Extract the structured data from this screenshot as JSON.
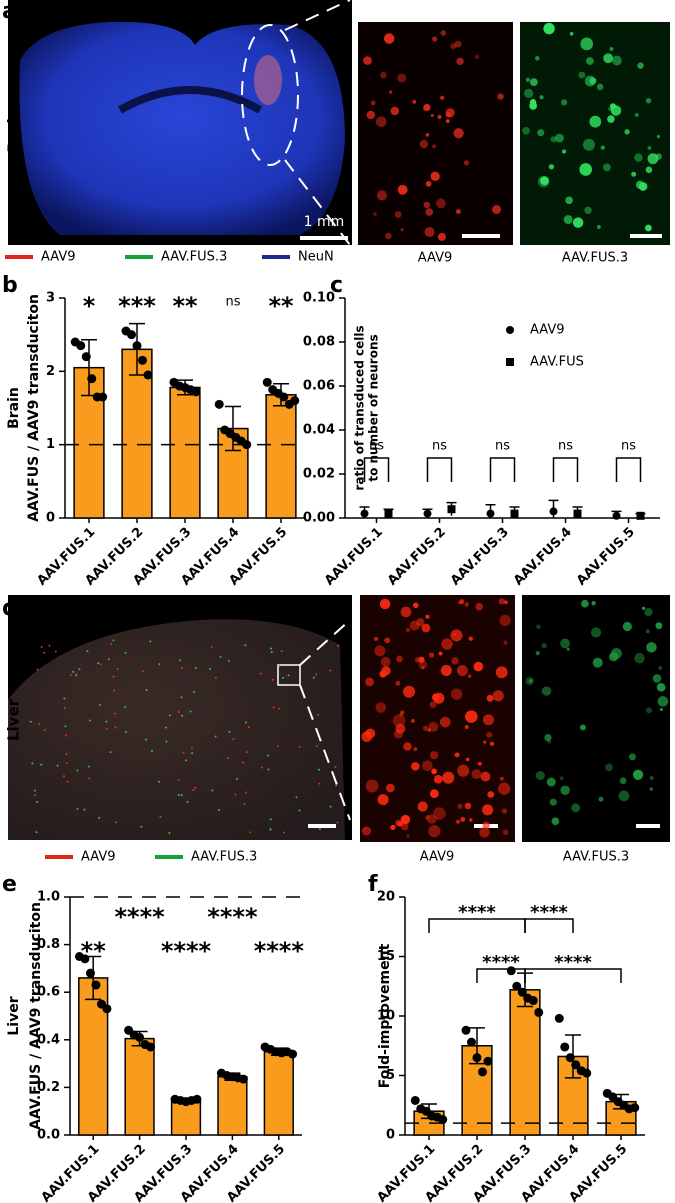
{
  "figure": {
    "panel_labels": [
      "a",
      "b",
      "c",
      "d",
      "e",
      "f"
    ],
    "brain_label": "Brain",
    "liver_label": "Liver",
    "scale_bar": "1 mm",
    "image_captions_top": [
      "AAV9",
      "AAV.FUS.3"
    ],
    "image_captions_bottom": [
      "AAV9",
      "AAV.FUS.3"
    ],
    "channel_legend_top": [
      {
        "name": "AAV9",
        "color": "#e0261a"
      },
      {
        "name": "AAV.FUS.3",
        "color": "#16a03c"
      },
      {
        "name": "NeuN",
        "color": "#1c2a8c"
      }
    ],
    "channel_legend_bottom": [
      {
        "name": "AAV9",
        "color": "#e0261a"
      },
      {
        "name": "AAV.FUS.3",
        "color": "#16a03c"
      }
    ]
  },
  "chart_data": [
    {
      "type": "bar",
      "ylabel": [
        "Brain",
        "AAV.FUS / AAV9 transduciton"
      ],
      "categories": [
        "AAV.FUS.1",
        "AAV.FUS.2",
        "AAV.FUS.3",
        "AAV.FUS.4",
        "AAV.FUS.5"
      ],
      "values": [
        2.05,
        2.3,
        1.78,
        1.22,
        1.68
      ],
      "errors": [
        0.38,
        0.35,
        0.1,
        0.3,
        0.15
      ],
      "points": [
        [
          2.4,
          2.35,
          2.2,
          1.9,
          1.65,
          1.65
        ],
        [
          2.55,
          2.5,
          2.35,
          2.15,
          1.95
        ],
        [
          1.85,
          1.8,
          1.78,
          1.75,
          1.72
        ],
        [
          1.55,
          1.2,
          1.15,
          1.1,
          1.05,
          1.0
        ],
        [
          1.85,
          1.75,
          1.7,
          1.65,
          1.55,
          1.6
        ]
      ],
      "significance": [
        "*",
        "***",
        "**",
        "ns",
        "**"
      ],
      "refline": 1,
      "color": "#f99b1c",
      "ylim": [
        0,
        3
      ],
      "yticks": [
        0,
        1,
        2,
        3
      ]
    },
    {
      "type": "dot",
      "ylabel": [
        "ratio of transduced cells",
        "to number of neurons"
      ],
      "categories": [
        "AAV.FUS.1",
        "AAV.FUS.2",
        "AAV.FUS.3",
        "AAV.FUS.4",
        "AAV.FUS.5"
      ],
      "series": [
        {
          "name": "AAV9",
          "marker": "circle",
          "color": "#000000",
          "values": [
            0.002,
            0.002,
            0.002,
            0.003,
            0.001
          ],
          "errors": [
            0.003,
            0.002,
            0.004,
            0.005,
            0.002
          ]
        },
        {
          "name": "AAV.FUS",
          "marker": "square",
          "color": "#000000",
          "values": [
            0.002,
            0.004,
            0.002,
            0.002,
            0.001
          ],
          "errors": [
            0.002,
            0.003,
            0.003,
            0.003,
            0.001
          ]
        }
      ],
      "significance": [
        "ns",
        "ns",
        "ns",
        "ns",
        "ns"
      ],
      "legend": "upper right",
      "ylim": [
        0,
        0.1
      ],
      "yticks": [
        {
          "value": 0,
          "label": "0.00"
        },
        {
          "value": 0.02,
          "label": "0.02"
        },
        {
          "value": 0.04,
          "label": "0.04"
        },
        {
          "value": 0.06,
          "label": "0.06"
        },
        {
          "value": 0.08,
          "label": "0.08"
        },
        {
          "value": 0.1,
          "label": "0.10"
        }
      ]
    },
    {
      "type": "bar",
      "ylabel": [
        "Liver",
        "AAV.FUS / AAV9 transduciton"
      ],
      "categories": [
        "AAV.FUS.1",
        "AAV.FUS.2",
        "AAV.FUS.3",
        "AAV.FUS.4",
        "AAV.FUS.5"
      ],
      "values": [
        0.66,
        0.405,
        0.145,
        0.245,
        0.35
      ],
      "errors": [
        0.09,
        0.03,
        0.01,
        0.015,
        0.015
      ],
      "points": [
        [
          0.75,
          0.74,
          0.68,
          0.63,
          0.55,
          0.53
        ],
        [
          0.44,
          0.42,
          0.41,
          0.38,
          0.37
        ],
        [
          0.15,
          0.145,
          0.14,
          0.145,
          0.15
        ],
        [
          0.26,
          0.25,
          0.245,
          0.24,
          0.235
        ],
        [
          0.37,
          0.36,
          0.35,
          0.345,
          0.35,
          0.34
        ]
      ],
      "significance": [
        "**",
        "****",
        "****",
        "****",
        "****"
      ],
      "refline": 1,
      "color": "#f99b1c",
      "ylim": [
        0,
        1
      ],
      "yticks": [
        {
          "value": 0,
          "label": "0.0"
        },
        {
          "value": 0.2,
          "label": "0.2"
        },
        {
          "value": 0.4,
          "label": "0.4"
        },
        {
          "value": 0.6,
          "label": "0.6"
        },
        {
          "value": 0.8,
          "label": "0.8"
        },
        {
          "value": 1,
          "label": "1.0"
        }
      ]
    },
    {
      "type": "bar",
      "ylabel": [
        "Fold-improvement"
      ],
      "categories": [
        "AAV.FUS.1",
        "AAV.FUS.2",
        "AAV.FUS.3",
        "AAV.FUS.4",
        "AAV.FUS.5"
      ],
      "values": [
        2.0,
        7.5,
        12.2,
        6.6,
        2.8
      ],
      "errors": [
        0.6,
        1.5,
        1.4,
        1.8,
        0.6
      ],
      "points": [
        [
          2.9,
          2.2,
          2.0,
          1.6,
          1.5,
          1.3
        ],
        [
          8.8,
          7.8,
          6.5,
          5.3,
          6.2
        ],
        [
          13.8,
          12.5,
          12.0,
          11.5,
          11.3,
          10.3
        ],
        [
          9.8,
          7.4,
          6.5,
          5.9,
          5.4,
          5.2
        ],
        [
          3.5,
          3.2,
          2.8,
          2.5,
          2.2,
          2.3
        ]
      ],
      "comparisons": [
        {
          "pair": [
            0,
            2
          ],
          "label": "****"
        },
        {
          "pair": [
            2,
            3
          ],
          "label": "****"
        },
        {
          "pair": [
            1,
            2
          ],
          "label": "****"
        },
        {
          "pair": [
            2,
            4
          ],
          "label": "****"
        }
      ],
      "refline": 1,
      "color": "#f99b1c",
      "ylim": [
        0,
        20
      ],
      "yticks": [
        0,
        5,
        10,
        15,
        20
      ]
    }
  ]
}
